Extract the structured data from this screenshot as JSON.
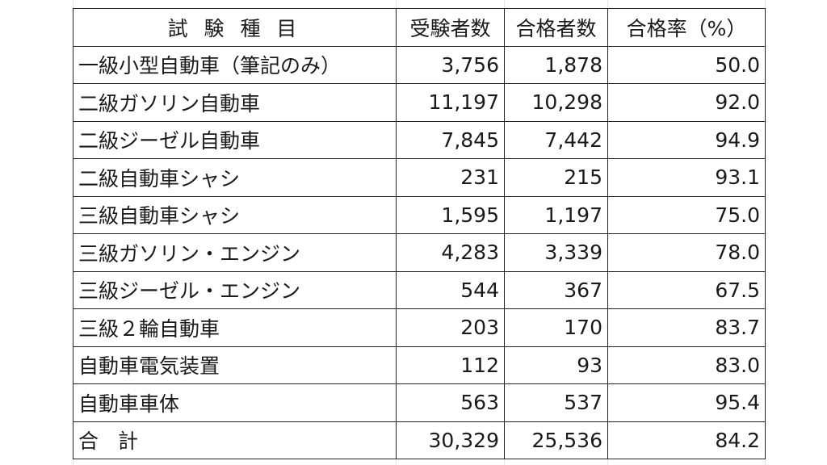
{
  "table": {
    "headers": {
      "name": "試 験 種 目",
      "takers": "受験者数",
      "passed": "合格者数",
      "rate": "合格率（%）"
    },
    "rows": [
      {
        "name": "一級小型自動車（筆記のみ）",
        "takers": "3,756",
        "passed": "1,878",
        "rate": "50.0"
      },
      {
        "name": "二級ガソリン自動車",
        "takers": "11,197",
        "passed": "10,298",
        "rate": "92.0"
      },
      {
        "name": "二級ジーゼル自動車",
        "takers": "7,845",
        "passed": "7,442",
        "rate": "94.9"
      },
      {
        "name": "二級自動車シャシ",
        "takers": "231",
        "passed": "215",
        "rate": "93.1"
      },
      {
        "name": "三級自動車シャシ",
        "takers": "1,595",
        "passed": "1,197",
        "rate": "75.0"
      },
      {
        "name": "三級ガソリン・エンジン",
        "takers": "4,283",
        "passed": "3,339",
        "rate": "78.0"
      },
      {
        "name": "三級ジーゼル・エンジン",
        "takers": "544",
        "passed": "367",
        "rate": "67.5"
      },
      {
        "name": "三級２輪自動車",
        "takers": "203",
        "passed": "170",
        "rate": "83.7"
      },
      {
        "name": "自動車電気装置",
        "takers": "112",
        "passed": "93",
        "rate": "83.0"
      },
      {
        "name": "自動車車体",
        "takers": "563",
        "passed": "537",
        "rate": "95.4"
      }
    ],
    "total": {
      "name": "合 計",
      "takers": "30,329",
      "passed": "25,536",
      "rate": "84.2"
    }
  }
}
